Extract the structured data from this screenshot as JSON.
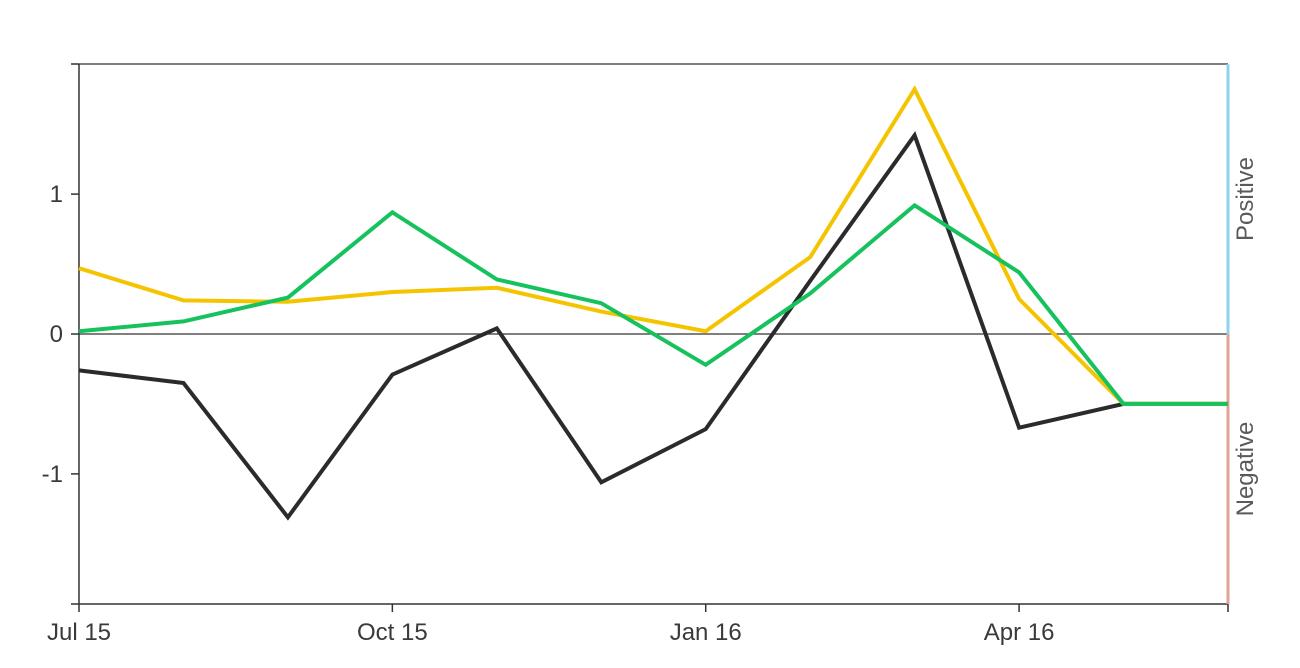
{
  "chart_data": {
    "type": "line",
    "x": [
      "2015-07",
      "2015-08",
      "2015-09",
      "2015-10",
      "2015-11",
      "2015-12",
      "2016-01",
      "2016-02",
      "2016-03",
      "2016-04",
      "2016-05",
      "2016-06"
    ],
    "series": [
      {
        "color": "#2b2b2b",
        "values": [
          -0.26,
          -0.35,
          -1.31,
          -0.29,
          0.04,
          -1.06,
          -0.68,
          0.38,
          1.42,
          -0.67,
          -0.5,
          -0.5
        ]
      },
      {
        "color": "#f5c400",
        "values": [
          0.47,
          0.24,
          0.23,
          0.3,
          0.33,
          0.16,
          0.02,
          0.55,
          1.75,
          0.25,
          -0.5,
          -0.5
        ]
      },
      {
        "color": "#16c25d",
        "values": [
          0.02,
          0.09,
          0.26,
          0.87,
          0.39,
          0.22,
          -0.22,
          0.29,
          0.92,
          0.44,
          -0.5,
          -0.5
        ]
      }
    ],
    "ylim": [
      -1.93,
      1.93
    ],
    "yticks": [
      {
        "value": 1,
        "label": "1"
      },
      {
        "value": 0,
        "label": "0"
      },
      {
        "value": -1,
        "label": "-1"
      }
    ],
    "xticks": [
      {
        "value": "2015-07",
        "label": "Jul 15"
      },
      {
        "value": "2015-10",
        "label": "Oct 15"
      },
      {
        "value": "2016-01",
        "label": "Jan 16"
      },
      {
        "value": "2016-04",
        "label": "Apr 16"
      }
    ],
    "bands": [
      {
        "label": "Positive",
        "color": "#8fd3ea"
      },
      {
        "label": "Negative",
        "color": "#e0a39a"
      }
    ],
    "zero_line": true,
    "grid": false
  }
}
